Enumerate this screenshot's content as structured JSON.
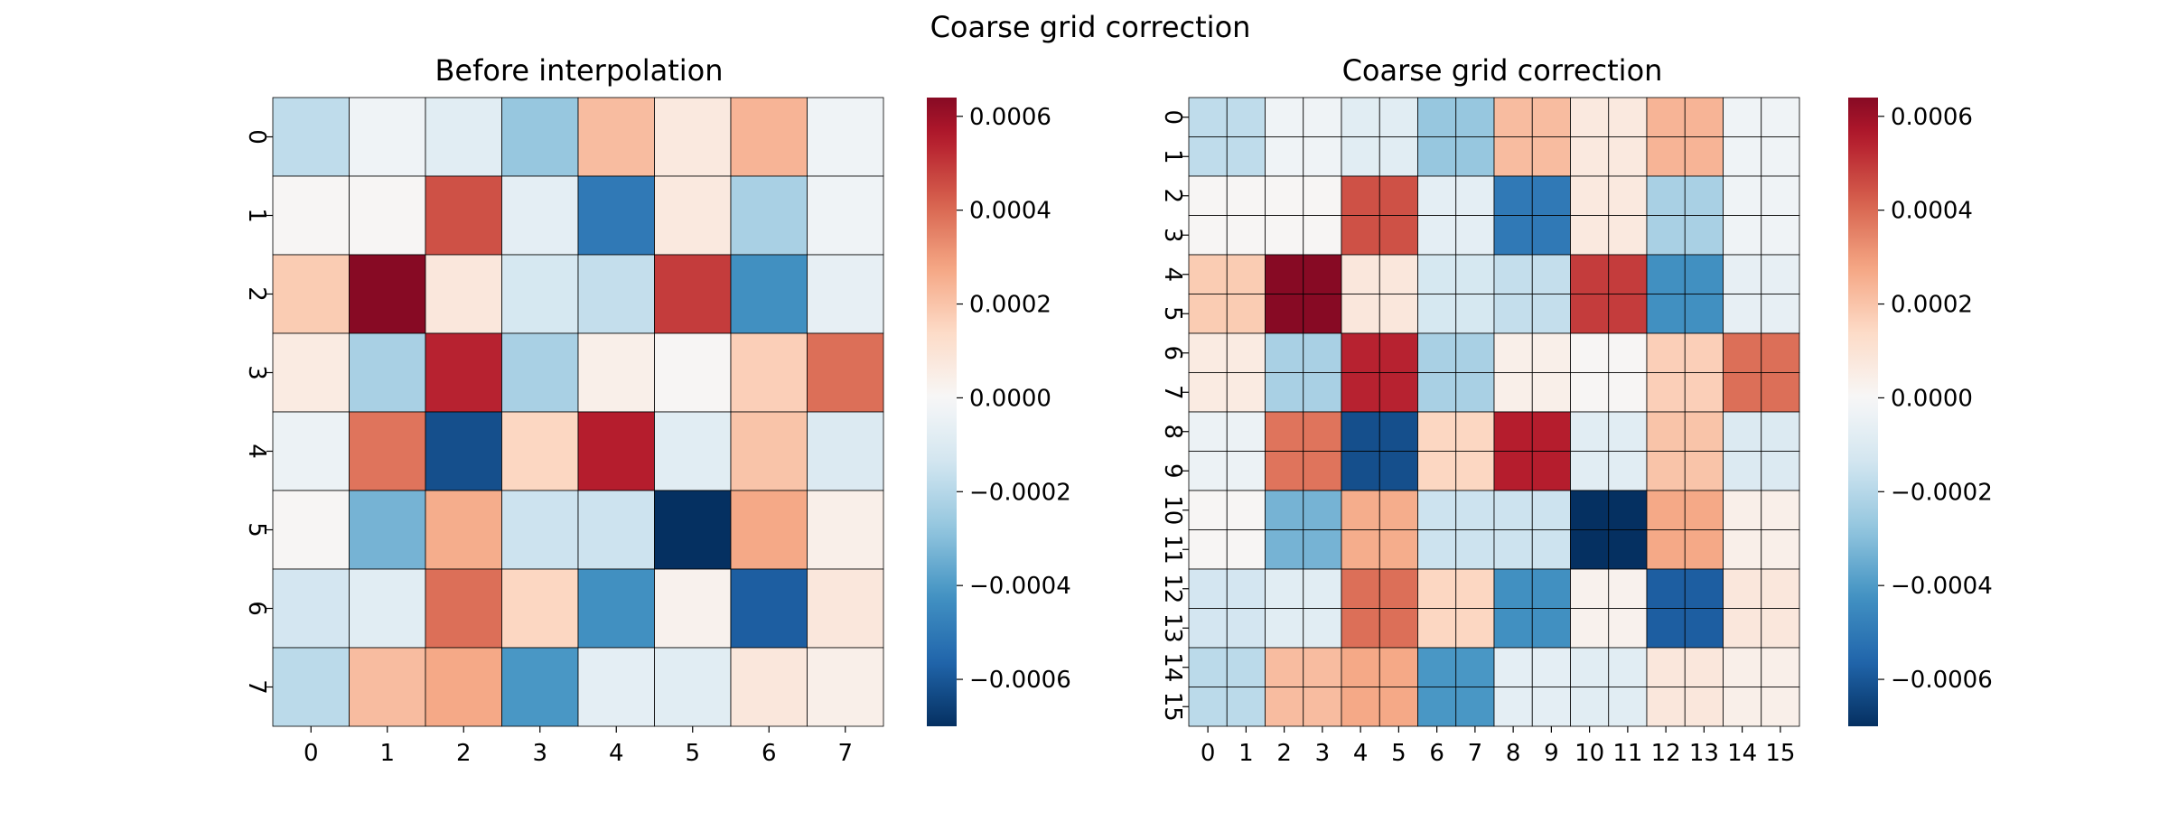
{
  "figure": {
    "suptitle": "Coarse grid correction"
  },
  "colormap": {
    "name": "RdBu_r",
    "vmin": -0.0007,
    "vmax": 0.00064,
    "stops": [
      "#053061",
      "#2166ac",
      "#4393c3",
      "#92c5de",
      "#d1e5f0",
      "#f7f7f7",
      "#fddbc7",
      "#f4a582",
      "#d6604d",
      "#b2182b",
      "#67001f"
    ],
    "cell_border": "#000000"
  },
  "chart_data": [
    {
      "type": "heatmap",
      "title": "Before interpolation",
      "x_ticks": [
        "0",
        "1",
        "2",
        "3",
        "4",
        "5",
        "6",
        "7"
      ],
      "y_ticks": [
        "0",
        "1",
        "2",
        "3",
        "4",
        "5",
        "6",
        "7"
      ],
      "colorbar_ticks": [
        {
          "value": 0.0006,
          "label": "0.0006"
        },
        {
          "value": 0.0004,
          "label": "0.0004"
        },
        {
          "value": 0.0002,
          "label": "0.0002"
        },
        {
          "value": 0.0,
          "label": "0.0000"
        },
        {
          "value": -0.0002,
          "label": "−0.0002"
        },
        {
          "value": -0.0004,
          "label": "−0.0004"
        },
        {
          "value": -0.0006,
          "label": "−0.0006"
        }
      ],
      "values": [
        [
          -0.00018,
          -3e-05,
          -8e-05,
          -0.00027,
          0.00022,
          7e-05,
          0.00024,
          -3e-05
        ],
        [
          1e-05,
          1e-05,
          0.00045,
          -7e-05,
          -0.0005,
          7e-05,
          -0.00023,
          -3e-05
        ],
        [
          0.00018,
          0.00064,
          8e-05,
          -0.00012,
          -0.00017,
          0.00049,
          -0.00043,
          -6e-05
        ],
        [
          6e-05,
          -0.00023,
          0.00054,
          -0.00023,
          4e-05,
          1e-05,
          0.00017,
          0.00039
        ],
        [
          -4e-05,
          0.00038,
          -0.00062,
          0.00015,
          0.00055,
          -8e-05,
          0.0002,
          -0.0001
        ],
        [
          1e-05,
          -0.00033,
          0.00026,
          -0.00015,
          -0.00015,
          -0.0007,
          0.00027,
          4e-05
        ],
        [
          -0.00013,
          -8e-05,
          0.00039,
          0.00015,
          -0.00043,
          3e-05,
          -0.00058,
          8e-05
        ],
        [
          -0.00019,
          0.00022,
          0.00027,
          -0.00041,
          -7e-05,
          -8e-05,
          8e-05,
          4e-05
        ]
      ]
    },
    {
      "type": "heatmap",
      "title": "Coarse grid correction",
      "x_ticks": [
        "0",
        "1",
        "2",
        "3",
        "4",
        "5",
        "6",
        "7",
        "8",
        "9",
        "10",
        "11",
        "12",
        "13",
        "14",
        "15"
      ],
      "y_ticks": [
        "0",
        "1",
        "2",
        "3",
        "4",
        "5",
        "6",
        "7",
        "8",
        "9",
        "10",
        "11",
        "12",
        "13",
        "14",
        "15"
      ],
      "upsampled_from": 0,
      "colorbar_ticks": [
        {
          "value": 0.0006,
          "label": "0.0006"
        },
        {
          "value": 0.0004,
          "label": "0.0004"
        },
        {
          "value": 0.0002,
          "label": "0.0002"
        },
        {
          "value": 0.0,
          "label": "0.0000"
        },
        {
          "value": -0.0002,
          "label": "−0.0002"
        },
        {
          "value": -0.0004,
          "label": "−0.0004"
        },
        {
          "value": -0.0006,
          "label": "−0.0006"
        }
      ]
    }
  ]
}
